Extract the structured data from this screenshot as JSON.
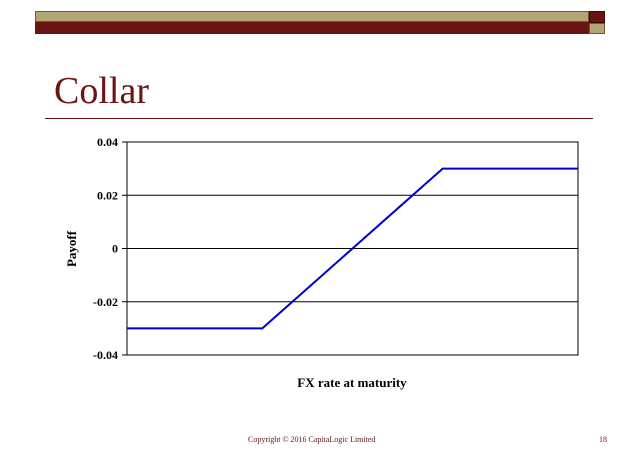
{
  "slide": {
    "title": "Collar",
    "footer": "Copyright © 2016 CapitaLogic Limited",
    "page_number": "18",
    "colors": {
      "accent": "#6b1414",
      "band": "#b5a575",
      "line": "#0000cc"
    }
  },
  "chart_data": {
    "type": "line",
    "title": "",
    "xlabel": "FX rate at maturity",
    "ylabel": "Payoff",
    "ylim": [
      -0.04,
      0.04
    ],
    "yticks": [
      0.04,
      0.02,
      0,
      -0.02,
      -0.04
    ],
    "ytick_labels": [
      "0.04",
      "0.02",
      "0",
      "-0.02",
      "-0.04"
    ],
    "xlim": [
      0,
      100
    ],
    "grid": true,
    "series": [
      {
        "x": [
          0,
          30,
          70,
          100
        ],
        "y": [
          -0.03,
          -0.03,
          0.03,
          0.03
        ]
      }
    ]
  }
}
